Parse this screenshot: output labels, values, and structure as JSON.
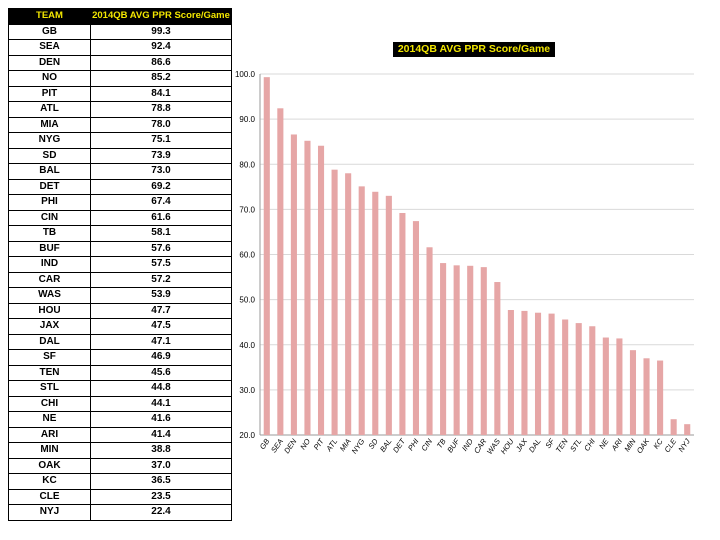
{
  "table": {
    "headers": [
      "TEAM",
      "2014QB  AVG PPR Score/Game"
    ],
    "rows": [
      [
        "GB",
        "99.3"
      ],
      [
        "SEA",
        "92.4"
      ],
      [
        "DEN",
        "86.6"
      ],
      [
        "NO",
        "85.2"
      ],
      [
        "PIT",
        "84.1"
      ],
      [
        "ATL",
        "78.8"
      ],
      [
        "MIA",
        "78.0"
      ],
      [
        "NYG",
        "75.1"
      ],
      [
        "SD",
        "73.9"
      ],
      [
        "BAL",
        "73.0"
      ],
      [
        "DET",
        "69.2"
      ],
      [
        "PHI",
        "67.4"
      ],
      [
        "CIN",
        "61.6"
      ],
      [
        "TB",
        "58.1"
      ],
      [
        "BUF",
        "57.6"
      ],
      [
        "IND",
        "57.5"
      ],
      [
        "CAR",
        "57.2"
      ],
      [
        "WAS",
        "53.9"
      ],
      [
        "HOU",
        "47.7"
      ],
      [
        "JAX",
        "47.5"
      ],
      [
        "DAL",
        "47.1"
      ],
      [
        "SF",
        "46.9"
      ],
      [
        "TEN",
        "45.6"
      ],
      [
        "STL",
        "44.8"
      ],
      [
        "CHI",
        "44.1"
      ],
      [
        "NE",
        "41.6"
      ],
      [
        "ARI",
        "41.4"
      ],
      [
        "MIN",
        "38.8"
      ],
      [
        "OAK",
        "37.0"
      ],
      [
        "KC",
        "36.5"
      ],
      [
        "CLE",
        "23.5"
      ],
      [
        "NYJ",
        "22.4"
      ]
    ]
  },
  "chart_data": {
    "type": "bar",
    "title": "2014QB  AVG PPR Score/Game",
    "categories": [
      "GB",
      "SEA",
      "DEN",
      "NO",
      "PIT",
      "ATL",
      "MIA",
      "NYG",
      "SD",
      "BAL",
      "DET",
      "PHI",
      "CIN",
      "TB",
      "BUF",
      "IND",
      "CAR",
      "WAS",
      "HOU",
      "JAX",
      "DAL",
      "SF",
      "TEN",
      "STL",
      "CHI",
      "NE",
      "ARI",
      "MIN",
      "OAK",
      "KC",
      "CLE",
      "NYJ"
    ],
    "values": [
      99.3,
      92.4,
      86.6,
      85.2,
      84.1,
      78.8,
      78.0,
      75.1,
      73.9,
      73.0,
      69.2,
      67.4,
      61.6,
      58.1,
      57.6,
      57.5,
      57.2,
      53.9,
      47.7,
      47.5,
      47.1,
      46.9,
      45.6,
      44.8,
      44.1,
      41.6,
      41.4,
      38.8,
      37.0,
      36.5,
      23.5,
      22.4
    ],
    "ylim": [
      20,
      100
    ],
    "yticks": [
      "20.0",
      "30.0",
      "40.0",
      "50.0",
      "60.0",
      "70.0",
      "80.0",
      "90.0",
      "100.0"
    ],
    "grid": true,
    "bar_color": "#e6a6a6",
    "xlabel": "",
    "ylabel": ""
  }
}
